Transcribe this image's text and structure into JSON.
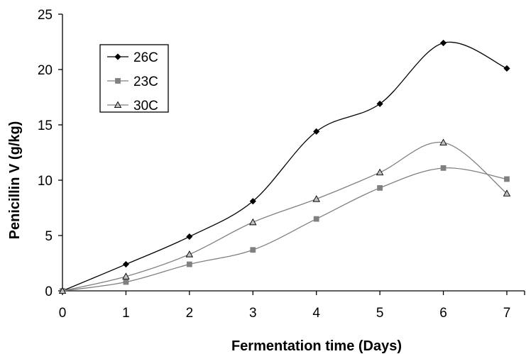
{
  "chart_data": {
    "type": "line",
    "xlabel": "Fermentation time (Days)",
    "ylabel": "Penicillin V (g/kg)",
    "xlim": [
      0,
      7
    ],
    "ylim": [
      0,
      25
    ],
    "xticks": [
      "0",
      "1",
      "2",
      "3",
      "4",
      "5",
      "6",
      "7"
    ],
    "yticks": [
      "0",
      "5",
      "10",
      "15",
      "20",
      "25"
    ],
    "x": [
      0,
      1,
      2,
      3,
      4,
      5,
      6,
      7
    ],
    "grid": false,
    "legend_position": "top-left",
    "series": [
      {
        "name": "26C",
        "marker": "diamond",
        "color": "#000000",
        "values": [
          0,
          2.4,
          4.9,
          8.1,
          14.4,
          16.9,
          22.4,
          20.1
        ]
      },
      {
        "name": "23C",
        "marker": "square",
        "color": "#808080",
        "values": [
          0,
          0.8,
          2.4,
          3.7,
          6.5,
          9.3,
          11.1,
          10.1
        ]
      },
      {
        "name": "30C",
        "marker": "triangle",
        "color": "#808080",
        "values": [
          0,
          1.3,
          3.3,
          6.2,
          8.3,
          10.7,
          13.4,
          8.8
        ]
      }
    ]
  }
}
